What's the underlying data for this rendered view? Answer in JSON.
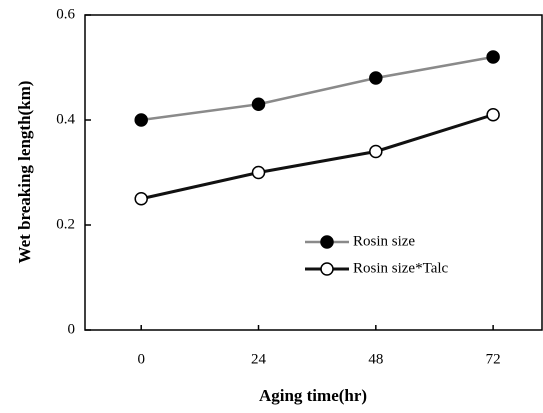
{
  "chart_data": {
    "type": "line",
    "xlabel": "Aging time(hr)",
    "ylabel": "Wet breaking length(km)",
    "x": [
      0,
      24,
      48,
      72
    ],
    "series": [
      {
        "name": "Rosin size",
        "color": "#8a8a8a",
        "marker": "filled",
        "values": [
          0.4,
          0.43,
          0.48,
          0.52
        ]
      },
      {
        "name": "Rosin size*Talc",
        "color": "#111111",
        "marker": "open",
        "values": [
          0.25,
          0.3,
          0.34,
          0.41
        ]
      }
    ],
    "xlim": [
      -11.5,
      82
    ],
    "xticks": [
      0,
      24,
      48,
      72
    ],
    "ylim": [
      0,
      0.6
    ],
    "yticks": [
      0,
      0.2,
      0.4,
      0.6
    ],
    "grid": false,
    "legend": "lower right"
  }
}
